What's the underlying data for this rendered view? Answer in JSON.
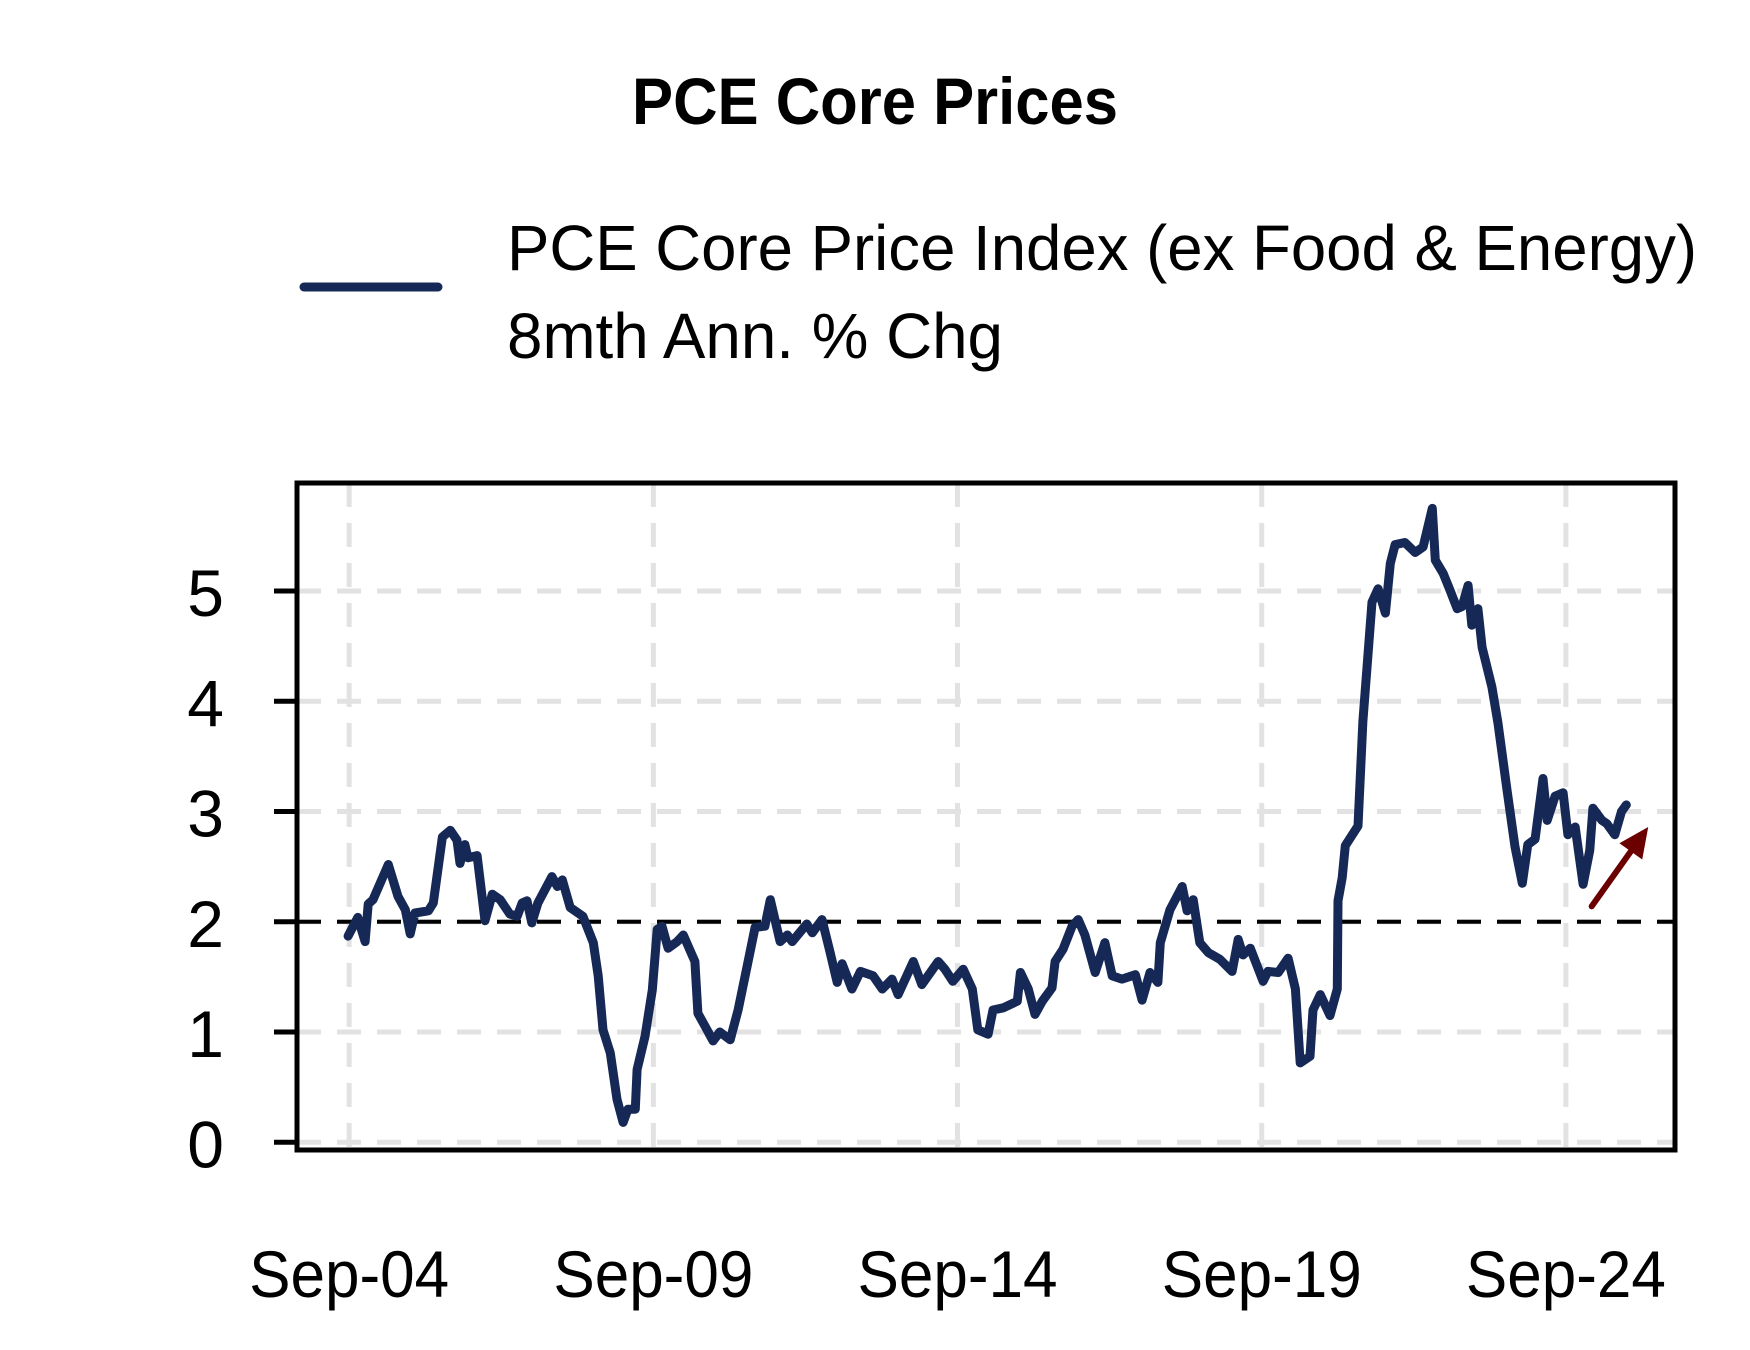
{
  "chart_data": {
    "type": "line",
    "title": "PCE Core Prices",
    "xlabel": "",
    "ylabel": "",
    "x_unit": "decimal year",
    "xlim": [
      2003.81,
      2026.46
    ],
    "ylim": [
      -0.07,
      5.98
    ],
    "grid": true,
    "legend_position": "top",
    "x_ticks": [
      {
        "x": 2004.667,
        "label": "Sep-04"
      },
      {
        "x": 2009.667,
        "label": "Sep-09"
      },
      {
        "x": 2014.667,
        "label": "Sep-14"
      },
      {
        "x": 2019.667,
        "label": "Sep-19"
      },
      {
        "x": 2024.667,
        "label": "Sep-24"
      }
    ],
    "y_ticks": [
      {
        "y": 0,
        "label": "0"
      },
      {
        "y": 1,
        "label": "1"
      },
      {
        "y": 2,
        "label": "2"
      },
      {
        "y": 3,
        "label": "3"
      },
      {
        "y": 4,
        "label": "4"
      },
      {
        "y": 5,
        "label": "5"
      }
    ],
    "reference_line": {
      "y": 2,
      "style": "dashed",
      "color": "#000000"
    },
    "annotation_arrow": {
      "from": [
        2025.09,
        2.14
      ],
      "to": [
        2026.02,
        2.86
      ],
      "color": "#6b0000",
      "meaning": "rising trend"
    },
    "series": [
      {
        "name": "PCE Core Price Index (ex Food & Energy) 8mth Ann. % Chg",
        "legend_lines": [
          "PCE Core Price Index (ex Food & Energy)",
          "8mth Ann. % Chg"
        ],
        "color": "#162856",
        "x": [
          2004.65,
          2004.81,
          2004.93,
          2004.98,
          2005.06,
          2005.31,
          2005.47,
          2005.59,
          2005.67,
          2005.75,
          2005.97,
          2006.05,
          2006.2,
          2006.33,
          2006.44,
          2006.49,
          2006.57,
          2006.62,
          2006.77,
          2006.9,
          2007.02,
          2007.15,
          2007.31,
          2007.43,
          2007.51,
          2007.59,
          2007.67,
          2007.77,
          2008.0,
          2008.09,
          2008.17,
          2008.3,
          2008.51,
          2008.68,
          2008.76,
          2008.84,
          2008.96,
          2009.07,
          2009.17,
          2009.25,
          2009.37,
          2009.4,
          2009.53,
          2009.65,
          2009.73,
          2009.81,
          2009.91,
          2010.06,
          2010.16,
          2010.35,
          2010.4,
          2010.52,
          2010.65,
          2010.76,
          2010.93,
          2011.06,
          2011.21,
          2011.34,
          2011.5,
          2011.59,
          2011.75,
          2011.87,
          2011.95,
          2012.19,
          2012.28,
          2012.44,
          2012.57,
          2012.69,
          2012.77,
          2012.93,
          2013.07,
          2013.28,
          2013.43,
          2013.59,
          2013.69,
          2013.94,
          2014.08,
          2014.35,
          2014.46,
          2014.59,
          2014.76,
          2014.91,
          2015.0,
          2015.17,
          2015.25,
          2015.42,
          2015.65,
          2015.7,
          2015.83,
          2015.94,
          2016.06,
          2016.22,
          2016.27,
          2016.4,
          2016.55,
          2016.65,
          2016.76,
          2016.93,
          2017.09,
          2017.21,
          2017.37,
          2017.59,
          2017.7,
          2017.83,
          2017.96,
          2018.0,
          2018.16,
          2018.36,
          2018.44,
          2018.54,
          2018.65,
          2018.79,
          2018.98,
          2019.18,
          2019.28,
          2019.36,
          2019.48,
          2019.69,
          2019.77,
          2019.94,
          2020.1,
          2020.22,
          2020.3,
          2020.46,
          2020.51,
          2020.63,
          2020.79,
          2020.91,
          2020.92,
          2020.99,
          2021.04,
          2021.25,
          2021.33,
          2021.48,
          2021.58,
          2021.7,
          2021.78,
          2021.86,
          2022.02,
          2022.19,
          2022.32,
          2022.47,
          2022.52,
          2022.65,
          2022.76,
          2022.88,
          2022.96,
          2023.06,
          2023.12,
          2023.22,
          2023.29,
          2023.45,
          2023.55,
          2023.7,
          2023.83,
          2023.95,
          2024.04,
          2024.16,
          2024.29,
          2024.36,
          2024.49,
          2024.62,
          2024.7,
          2024.82,
          2024.95,
          2025.06,
          2025.11,
          2025.26,
          2025.34,
          2025.47,
          2025.58,
          2025.66
        ],
        "values": [
          1.87,
          2.04,
          1.82,
          2.16,
          2.2,
          2.52,
          2.23,
          2.11,
          1.89,
          2.08,
          2.1,
          2.17,
          2.77,
          2.83,
          2.74,
          2.53,
          2.7,
          2.58,
          2.6,
          2.01,
          2.25,
          2.2,
          2.07,
          2.05,
          2.17,
          2.19,
          1.99,
          2.17,
          2.41,
          2.32,
          2.38,
          2.13,
          2.05,
          1.81,
          1.51,
          1.02,
          0.81,
          0.39,
          0.18,
          0.3,
          0.3,
          0.66,
          0.96,
          1.38,
          1.93,
          1.96,
          1.76,
          1.82,
          1.88,
          1.64,
          1.17,
          1.05,
          0.92,
          1.0,
          0.93,
          1.2,
          1.6,
          1.95,
          1.96,
          2.2,
          1.82,
          1.88,
          1.82,
          1.98,
          1.9,
          2.02,
          1.73,
          1.45,
          1.62,
          1.39,
          1.55,
          1.51,
          1.39,
          1.48,
          1.34,
          1.64,
          1.43,
          1.64,
          1.57,
          1.46,
          1.57,
          1.39,
          1.02,
          0.98,
          1.2,
          1.22,
          1.28,
          1.54,
          1.39,
          1.16,
          1.28,
          1.4,
          1.64,
          1.75,
          1.96,
          2.02,
          1.88,
          1.54,
          1.81,
          1.51,
          1.48,
          1.52,
          1.29,
          1.54,
          1.45,
          1.81,
          2.11,
          2.32,
          2.1,
          2.2,
          1.81,
          1.72,
          1.66,
          1.55,
          1.84,
          1.7,
          1.76,
          1.46,
          1.55,
          1.54,
          1.67,
          1.39,
          0.72,
          0.78,
          1.2,
          1.34,
          1.15,
          1.39,
          2.19,
          2.4,
          2.69,
          2.87,
          3.82,
          4.9,
          5.02,
          4.8,
          5.25,
          5.42,
          5.44,
          5.35,
          5.4,
          5.75,
          5.28,
          5.16,
          5.01,
          4.84,
          4.86,
          5.05,
          4.69,
          4.84,
          4.49,
          4.13,
          3.8,
          3.19,
          2.68,
          2.35,
          2.7,
          2.75,
          3.3,
          2.92,
          3.14,
          3.17,
          2.79,
          2.86,
          2.34,
          2.65,
          3.03,
          2.92,
          2.89,
          2.79,
          3.0,
          3.06
        ]
      }
    ]
  }
}
